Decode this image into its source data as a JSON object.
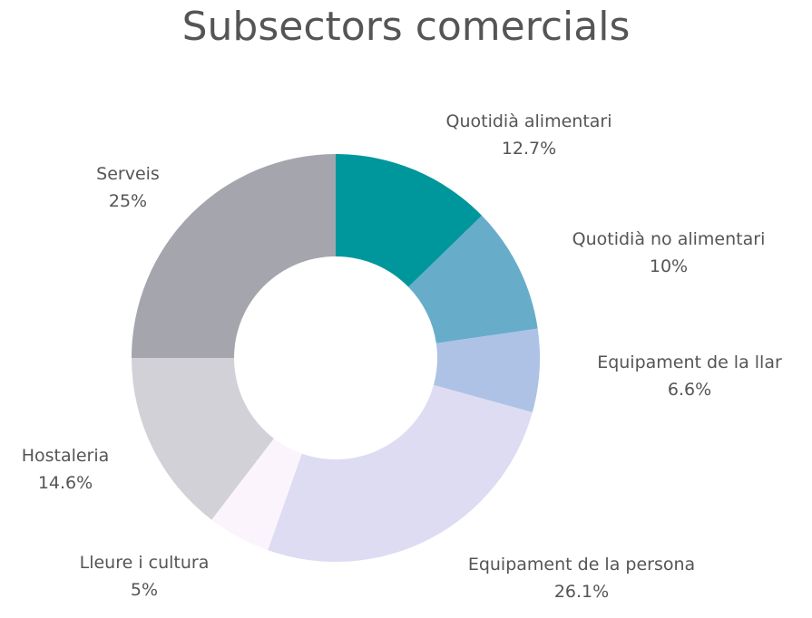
{
  "chart_data": {
    "type": "pie",
    "title": "Subsectors comercials",
    "donut": true,
    "slices": [
      {
        "label": "Quotidià alimentari",
        "value": 12.7,
        "display": "12.7%",
        "color": "#00979C"
      },
      {
        "label": "Quotidià no alimentari",
        "value": 10,
        "display": "10%",
        "color": "#67ADCA"
      },
      {
        "label": "Equipament de la llar",
        "value": 6.6,
        "display": "6.6%",
        "color": "#ADC2E5"
      },
      {
        "label": "Equipament de la persona",
        "value": 26.1,
        "display": "26.1%",
        "color": "#DEDCF2"
      },
      {
        "label": "Lleure i cultura",
        "value": 5,
        "display": "5%",
        "color": "#FCF4FC"
      },
      {
        "label": "Hostaleria",
        "value": 14.6,
        "display": "14.6%",
        "color": "#D3D1D8"
      },
      {
        "label": "Serveis",
        "value": 25,
        "display": "25%",
        "color": "#A5A5AE"
      }
    ]
  }
}
